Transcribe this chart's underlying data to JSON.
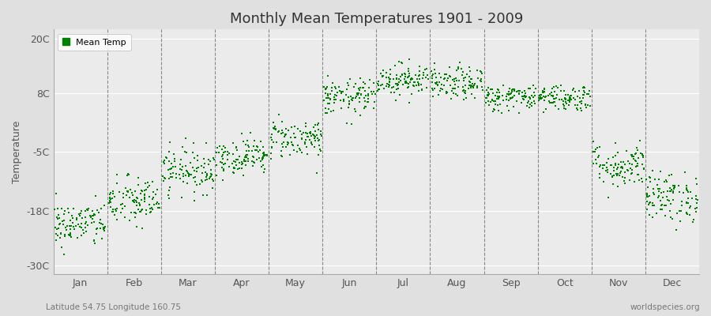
{
  "title": "Monthly Mean Temperatures 1901 - 2009",
  "ylabel": "Temperature",
  "yticks": [
    -30,
    -18,
    -5,
    8,
    20
  ],
  "ytick_labels": [
    "-30C",
    "-18C",
    "-5C",
    "8C",
    "20C"
  ],
  "ylim": [
    -32,
    22
  ],
  "month_labels": [
    "Jan",
    "Feb",
    "Mar",
    "Apr",
    "May",
    "Jun",
    "Jul",
    "Aug",
    "Sep",
    "Oct",
    "Nov",
    "Dec"
  ],
  "dot_color": "#008000",
  "bg_color": "#e0e0e0",
  "plot_bg_color": "#ebebeb",
  "legend_label": "Mean Temp",
  "subtitle_left": "Latitude 54.75 Longitude 160.75",
  "subtitle_right": "worldspecies.org",
  "n_years": 109,
  "monthly_means": [
    -21,
    -16,
    -9,
    -6,
    -2,
    7,
    11,
    10,
    7,
    7,
    -8,
    -15
  ],
  "monthly_stds": [
    2.5,
    2.8,
    2.5,
    2.0,
    2.2,
    2.0,
    1.8,
    1.8,
    1.5,
    1.5,
    2.5,
    2.8
  ]
}
